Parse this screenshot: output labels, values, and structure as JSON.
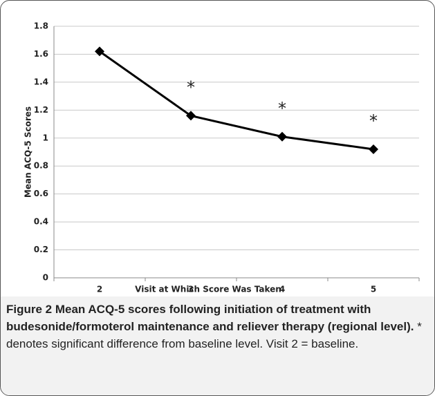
{
  "chart_data": {
    "type": "line",
    "x_label": "Visit at Which Score Was Taken",
    "y_label": "Mean ACQ-5 Scores",
    "categories": [
      "2",
      "3",
      "4",
      "5"
    ],
    "values": [
      1.62,
      1.16,
      1.01,
      0.92
    ],
    "color": "#000000",
    "ylim": [
      0,
      1.8
    ],
    "yticks": [
      0,
      0.2,
      0.4,
      0.6,
      0.8,
      1,
      1.2,
      1.4,
      1.6,
      1.8
    ],
    "grid": true,
    "annotations": [
      {
        "category": 1,
        "text": "*"
      },
      {
        "category": 2,
        "text": "*"
      },
      {
        "category": 3,
        "text": "*"
      }
    ]
  },
  "caption": {
    "label": "Figure 2",
    "title": "Mean ACQ-5 scores following initiation of treatment with budesonide/formoterol maintenance and reliever therapy (regional level).",
    "text": "* denotes significant difference from baseline level. Visit 2 = baseline."
  }
}
